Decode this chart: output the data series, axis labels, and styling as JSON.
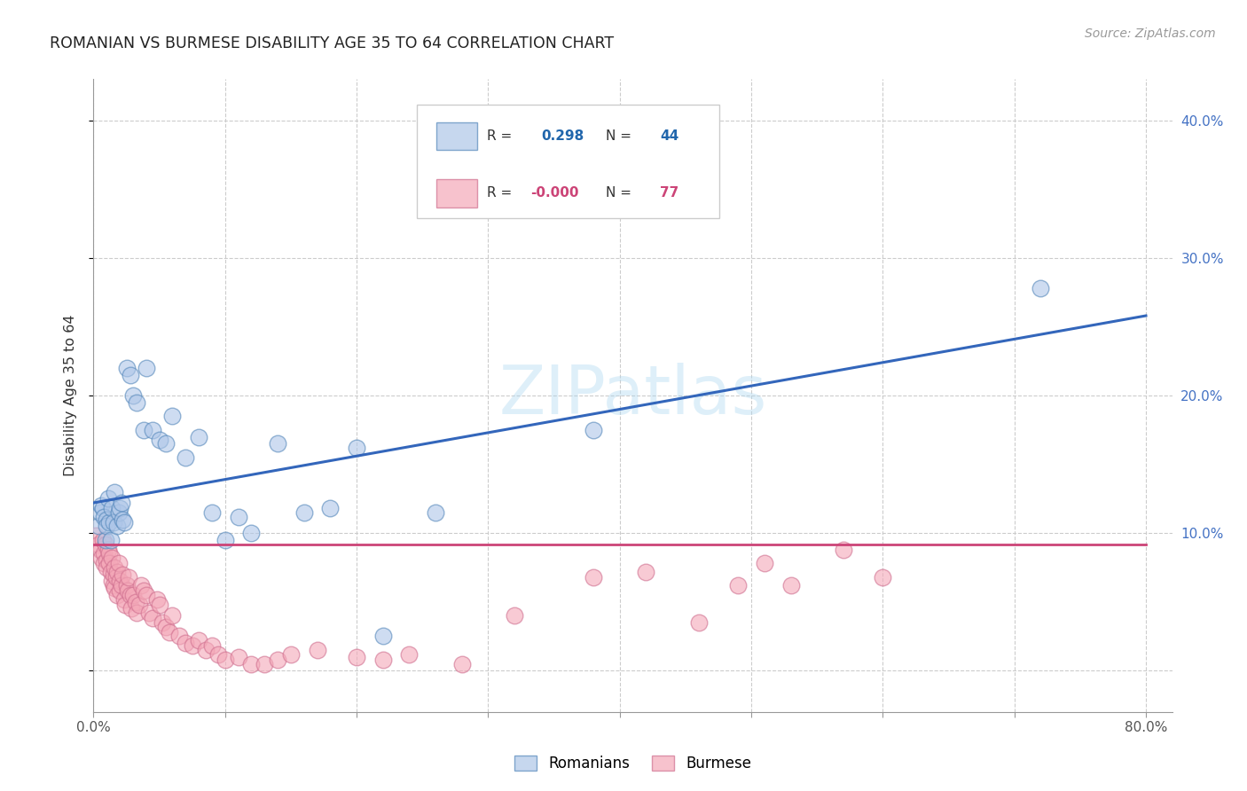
{
  "title": "ROMANIAN VS BURMESE DISABILITY AGE 35 TO 64 CORRELATION CHART",
  "source": "Source: ZipAtlas.com",
  "ylabel": "Disability Age 35 to 64",
  "xlim": [
    0.0,
    0.82
  ],
  "ylim": [
    -0.03,
    0.43
  ],
  "xticks": [
    0.0,
    0.1,
    0.2,
    0.3,
    0.4,
    0.5,
    0.6,
    0.7,
    0.8
  ],
  "xticklabels": [
    "0.0%",
    "",
    "",
    "",
    "",
    "",
    "",
    "",
    "80.0%"
  ],
  "ytick_vals": [
    0.0,
    0.1,
    0.2,
    0.3,
    0.4
  ],
  "yticklabels_right": [
    "",
    "10.0%",
    "20.0%",
    "30.0%",
    "40.0%"
  ],
  "romanian_R": 0.298,
  "romanian_N": 44,
  "burmese_R": -0.0,
  "burmese_N": 77,
  "blue_fill": "#aec6e8",
  "blue_edge": "#5588bb",
  "pink_fill": "#f4a8b8",
  "pink_edge": "#d07090",
  "blue_line_color": "#3366bb",
  "pink_line_color": "#cc4477",
  "watermark": "ZIPatlas",
  "grid_color": "#cccccc",
  "bg_color": "#ffffff",
  "romanian_x": [
    0.004,
    0.005,
    0.006,
    0.007,
    0.008,
    0.009,
    0.01,
    0.01,
    0.011,
    0.012,
    0.013,
    0.014,
    0.015,
    0.016,
    0.018,
    0.019,
    0.02,
    0.021,
    0.022,
    0.023,
    0.025,
    0.028,
    0.03,
    0.033,
    0.038,
    0.04,
    0.045,
    0.05,
    0.055,
    0.06,
    0.07,
    0.08,
    0.09,
    0.1,
    0.11,
    0.12,
    0.14,
    0.16,
    0.18,
    0.2,
    0.22,
    0.26,
    0.38,
    0.72
  ],
  "romanian_y": [
    0.105,
    0.115,
    0.12,
    0.118,
    0.112,
    0.095,
    0.11,
    0.105,
    0.125,
    0.108,
    0.095,
    0.118,
    0.108,
    0.13,
    0.105,
    0.115,
    0.118,
    0.122,
    0.11,
    0.108,
    0.22,
    0.215,
    0.2,
    0.195,
    0.175,
    0.22,
    0.175,
    0.168,
    0.165,
    0.185,
    0.155,
    0.17,
    0.115,
    0.095,
    0.112,
    0.1,
    0.165,
    0.115,
    0.118,
    0.162,
    0.025,
    0.115,
    0.175,
    0.278
  ],
  "burmese_x": [
    0.002,
    0.004,
    0.005,
    0.006,
    0.007,
    0.008,
    0.008,
    0.009,
    0.01,
    0.01,
    0.011,
    0.012,
    0.012,
    0.013,
    0.014,
    0.014,
    0.015,
    0.015,
    0.016,
    0.016,
    0.017,
    0.018,
    0.018,
    0.019,
    0.02,
    0.02,
    0.021,
    0.022,
    0.023,
    0.024,
    0.025,
    0.026,
    0.027,
    0.028,
    0.029,
    0.03,
    0.032,
    0.033,
    0.035,
    0.036,
    0.038,
    0.04,
    0.042,
    0.045,
    0.048,
    0.05,
    0.052,
    0.055,
    0.058,
    0.06,
    0.065,
    0.07,
    0.075,
    0.08,
    0.085,
    0.09,
    0.095,
    0.1,
    0.11,
    0.12,
    0.13,
    0.14,
    0.15,
    0.17,
    0.2,
    0.22,
    0.24,
    0.28,
    0.32,
    0.38,
    0.42,
    0.46,
    0.49,
    0.51,
    0.53,
    0.57,
    0.6
  ],
  "burmese_y": [
    0.098,
    0.092,
    0.088,
    0.082,
    0.095,
    0.085,
    0.078,
    0.092,
    0.08,
    0.075,
    0.088,
    0.085,
    0.078,
    0.072,
    0.065,
    0.082,
    0.07,
    0.062,
    0.075,
    0.06,
    0.068,
    0.072,
    0.055,
    0.078,
    0.065,
    0.058,
    0.062,
    0.07,
    0.052,
    0.048,
    0.062,
    0.058,
    0.068,
    0.055,
    0.045,
    0.055,
    0.05,
    0.042,
    0.048,
    0.062,
    0.058,
    0.055,
    0.042,
    0.038,
    0.052,
    0.048,
    0.035,
    0.032,
    0.028,
    0.04,
    0.025,
    0.02,
    0.018,
    0.022,
    0.015,
    0.018,
    0.012,
    0.008,
    0.01,
    0.005,
    0.005,
    0.008,
    0.012,
    0.015,
    0.01,
    0.008,
    0.012,
    0.005,
    0.04,
    0.068,
    0.072,
    0.035,
    0.062,
    0.078,
    0.062,
    0.088,
    0.068
  ],
  "blue_line_x0": 0.0,
  "blue_line_y0": 0.122,
  "blue_line_x1": 0.8,
  "blue_line_y1": 0.258,
  "pink_line_x0": 0.0,
  "pink_line_y0": 0.092,
  "pink_line_x1": 0.8,
  "pink_line_y1": 0.092
}
